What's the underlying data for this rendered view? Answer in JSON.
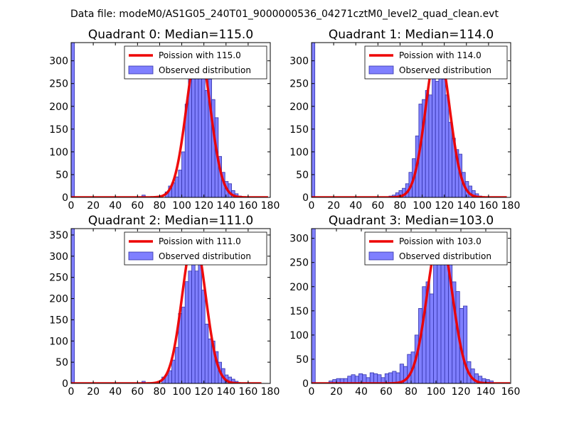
{
  "figure": {
    "title": "Data file: modeM0/AS1G05_240T01_9000000536_04271cztM0_level2_quad_clean.evt"
  },
  "colors": {
    "bar_fill": "#7f7fff",
    "bar_edge": "#3333aa",
    "curve": "#ee0000",
    "axis": "#000000"
  },
  "chart_data": [
    {
      "type": "bar",
      "title": "Quadrant 0: Median=115.0",
      "xlim": [
        0,
        180
      ],
      "ylim": [
        0,
        340
      ],
      "xticks": [
        0,
        20,
        40,
        60,
        80,
        100,
        120,
        140,
        160,
        180
      ],
      "yticks": [
        0,
        50,
        100,
        150,
        200,
        250,
        300
      ],
      "bin_width": 3,
      "bins_x": [
        0,
        64,
        85,
        88,
        91,
        94,
        97,
        100,
        103,
        106,
        109,
        112,
        115,
        118,
        121,
        124,
        127,
        130,
        133,
        136,
        139,
        142,
        145,
        148,
        151
      ],
      "counts": [
        340,
        5,
        12,
        25,
        32,
        45,
        60,
        100,
        205,
        265,
        270,
        295,
        300,
        325,
        235,
        260,
        215,
        175,
        90,
        55,
        35,
        30,
        15,
        8,
        3
      ],
      "curve_lambda": 115.0,
      "curve_peak": 330,
      "legend": [
        {
          "label": "Poission with 115.0",
          "kind": "line"
        },
        {
          "label": "Observed distribution",
          "kind": "patch"
        }
      ]
    },
    {
      "type": "bar",
      "title": "Quadrant 1: Median=114.0",
      "xlim": [
        0,
        180
      ],
      "ylim": [
        0,
        340
      ],
      "xticks": [
        0,
        20,
        40,
        60,
        80,
        100,
        120,
        140,
        160,
        180
      ],
      "yticks": [
        0,
        50,
        100,
        150,
        200,
        250,
        300
      ],
      "bin_width": 3,
      "bins_x": [
        0,
        70,
        73,
        76,
        79,
        82,
        85,
        88,
        91,
        94,
        97,
        100,
        103,
        106,
        109,
        112,
        115,
        118,
        121,
        124,
        127,
        130,
        133,
        136,
        139,
        142,
        145,
        148,
        151
      ],
      "counts": [
        340,
        3,
        5,
        10,
        15,
        20,
        30,
        55,
        85,
        135,
        205,
        215,
        235,
        225,
        310,
        255,
        325,
        260,
        225,
        165,
        130,
        105,
        95,
        55,
        35,
        25,
        15,
        8,
        3
      ],
      "curve_lambda": 114.0,
      "curve_peak": 330,
      "legend": [
        {
          "label": "Poission with 114.0",
          "kind": "line"
        },
        {
          "label": "Observed distribution",
          "kind": "patch"
        }
      ]
    },
    {
      "type": "bar",
      "title": "Quadrant 2: Median=111.0",
      "xlim": [
        0,
        180
      ],
      "ylim": [
        0,
        365
      ],
      "xticks": [
        0,
        20,
        40,
        60,
        80,
        100,
        120,
        140,
        160,
        180
      ],
      "yticks": [
        0,
        50,
        100,
        150,
        200,
        250,
        300,
        350
      ],
      "bin_width": 3,
      "bins_x": [
        0,
        64,
        82,
        85,
        88,
        91,
        94,
        97,
        100,
        103,
        106,
        109,
        112,
        115,
        118,
        121,
        124,
        127,
        130,
        133,
        136,
        139,
        142,
        145,
        148
      ],
      "counts": [
        365,
        5,
        15,
        20,
        30,
        55,
        85,
        165,
        180,
        240,
        265,
        345,
        265,
        300,
        220,
        140,
        105,
        100,
        75,
        50,
        35,
        20,
        15,
        10,
        5
      ],
      "curve_lambda": 111.0,
      "curve_peak": 345,
      "legend": [
        {
          "label": "Poission with 111.0",
          "kind": "line"
        },
        {
          "label": "Observed distribution",
          "kind": "patch"
        }
      ]
    },
    {
      "type": "bar",
      "title": "Quadrant 3: Median=103.0",
      "xlim": [
        0,
        160
      ],
      "ylim": [
        0,
        320
      ],
      "xticks": [
        0,
        20,
        40,
        60,
        80,
        100,
        120,
        140,
        160
      ],
      "yticks": [
        0,
        50,
        100,
        150,
        200,
        250,
        300
      ],
      "bin_width": 3,
      "bins_x": [
        0,
        14,
        17,
        20,
        23,
        26,
        29,
        32,
        35,
        38,
        41,
        44,
        47,
        50,
        53,
        56,
        59,
        62,
        65,
        68,
        71,
        74,
        77,
        80,
        83,
        86,
        89,
        92,
        95,
        98,
        101,
        104,
        107,
        110,
        113,
        116,
        119,
        122,
        125,
        128,
        131,
        134,
        137,
        140,
        143
      ],
      "counts": [
        320,
        5,
        8,
        10,
        10,
        10,
        15,
        18,
        15,
        20,
        18,
        12,
        22,
        20,
        18,
        12,
        20,
        22,
        25,
        22,
        40,
        35,
        60,
        65,
        100,
        155,
        200,
        210,
        185,
        255,
        310,
        255,
        305,
        275,
        210,
        190,
        155,
        160,
        45,
        30,
        20,
        15,
        10,
        8,
        5
      ],
      "curve_lambda": 103.0,
      "curve_peak": 305,
      "legend": [
        {
          "label": "Poission with 103.0",
          "kind": "line"
        },
        {
          "label": "Observed distribution",
          "kind": "patch"
        }
      ]
    }
  ]
}
